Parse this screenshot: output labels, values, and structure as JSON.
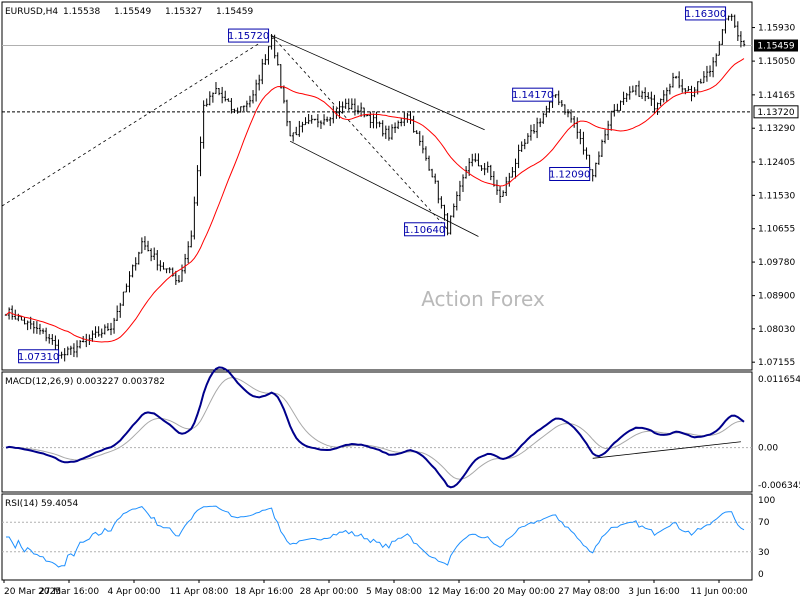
{
  "chart_data": [
    {
      "type": "candlestick",
      "header": {
        "symbol": "EURUSD,H4",
        "open": "1.15538",
        "high": "1.15549",
        "low": "1.15327",
        "close": "1.15459"
      },
      "watermark": "Action Forex",
      "ylim": [
        1.0695,
        1.166
      ],
      "y_ticks": [
        "1.15930",
        "1.15050",
        "1.14165",
        "1.13290",
        "1.12405",
        "1.11530",
        "1.10655",
        "1.09780",
        "1.08900",
        "1.08030",
        "1.07155"
      ],
      "y_tick_values": [
        1.1593,
        1.1505,
        1.14165,
        1.1329,
        1.12405,
        1.1153,
        1.10655,
        1.0978,
        1.089,
        1.0803,
        1.07155
      ],
      "price_tags": {
        "current": "1.15459",
        "level": "1.13720"
      },
      "x_ticks": [
        "20 Mar 2025",
        "27 Mar 16:00",
        "4 Apr 00:00",
        "11 Apr 08:00",
        "18 Apr 16:00",
        "28 Apr 00:00",
        "5 May 08:00",
        "12 May 16:00",
        "20 May 00:00",
        "27 May 08:00",
        "3 Jun 16:00",
        "11 Jun 00:00"
      ],
      "annotations": [
        "1.15720",
        "1.16300",
        "1.14170",
        "1.12090",
        "1.10640",
        "1.07310"
      ],
      "key_points": [
        {
          "bar": 0,
          "price": 1.085
        },
        {
          "bar": 8,
          "price": 1.081
        },
        {
          "bar": 14,
          "price": 1.078
        },
        {
          "bar": 18,
          "price": 1.0731
        },
        {
          "bar": 28,
          "price": 1.078
        },
        {
          "bar": 34,
          "price": 1.081
        },
        {
          "bar": 38,
          "price": 1.089
        },
        {
          "bar": 44,
          "price": 1.103
        },
        {
          "bar": 50,
          "price": 1.097
        },
        {
          "bar": 56,
          "price": 1.093
        },
        {
          "bar": 60,
          "price": 1.105
        },
        {
          "bar": 64,
          "price": 1.138
        },
        {
          "bar": 68,
          "price": 1.143
        },
        {
          "bar": 74,
          "price": 1.137
        },
        {
          "bar": 80,
          "price": 1.141
        },
        {
          "bar": 86,
          "price": 1.1572
        },
        {
          "bar": 92,
          "price": 1.131
        },
        {
          "bar": 98,
          "price": 1.134
        },
        {
          "bar": 104,
          "price": 1.136
        },
        {
          "bar": 110,
          "price": 1.139
        },
        {
          "bar": 116,
          "price": 1.137
        },
        {
          "bar": 124,
          "price": 1.131
        },
        {
          "bar": 130,
          "price": 1.137
        },
        {
          "bar": 138,
          "price": 1.121
        },
        {
          "bar": 143,
          "price": 1.1064
        },
        {
          "bar": 150,
          "price": 1.1245
        },
        {
          "bar": 156,
          "price": 1.122
        },
        {
          "bar": 160,
          "price": 1.1145
        },
        {
          "bar": 166,
          "price": 1.126
        },
        {
          "bar": 172,
          "price": 1.134
        },
        {
          "bar": 178,
          "price": 1.1417
        },
        {
          "bar": 184,
          "price": 1.134
        },
        {
          "bar": 190,
          "price": 1.1209
        },
        {
          "bar": 196,
          "price": 1.137
        },
        {
          "bar": 204,
          "price": 1.143
        },
        {
          "bar": 210,
          "price": 1.139
        },
        {
          "bar": 216,
          "price": 1.146
        },
        {
          "bar": 222,
          "price": 1.142
        },
        {
          "bar": 228,
          "price": 1.148
        },
        {
          "bar": 234,
          "price": 1.163
        },
        {
          "bar": 239,
          "price": 1.1546
        }
      ],
      "series": [
        {
          "name": "price",
          "color": "#000000"
        },
        {
          "name": "moving average",
          "color": "#ff0000"
        }
      ]
    },
    {
      "type": "line",
      "title": "MACD(12,26,9) 0.003227 0.003782",
      "y_ticks": [
        "0.011654",
        "0.00",
        "-0.006345"
      ],
      "y_tick_values": [
        0.011654,
        0.0,
        -0.006345
      ],
      "ylim": [
        -0.0075,
        0.0128
      ],
      "series": [
        {
          "name": "MACD",
          "color": "#00008b"
        },
        {
          "name": "signal",
          "color": "#a9a9a9"
        }
      ]
    },
    {
      "type": "line",
      "title": "RSI(14) 59.4054",
      "y_ticks": [
        "100",
        "70",
        "30",
        "0"
      ],
      "y_tick_values": [
        100,
        70,
        30,
        0
      ],
      "ylim": [
        0,
        100
      ],
      "series": [
        {
          "name": "RSI",
          "color": "#1e90ff"
        }
      ]
    }
  ]
}
